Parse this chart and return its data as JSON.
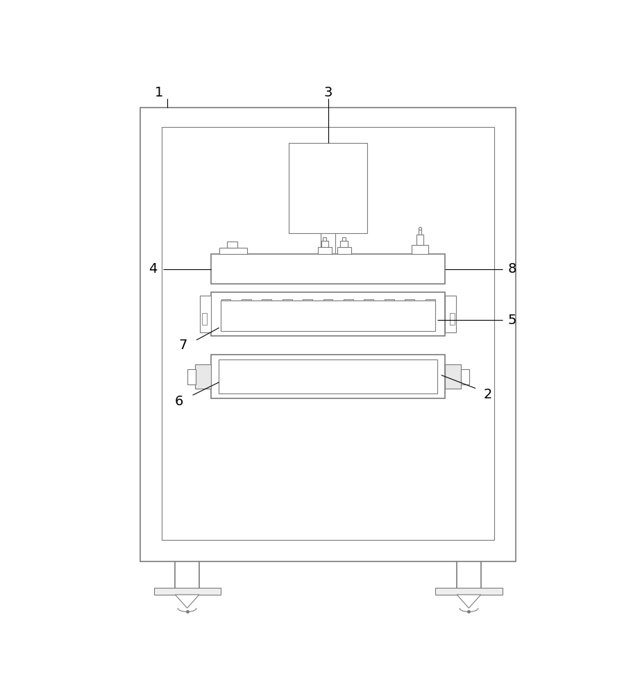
{
  "bg_color": "#ffffff",
  "line_color": "#7a7a7a",
  "lw_thin": 0.8,
  "lw_med": 1.2,
  "lw_thick": 1.5,
  "fig_width": 9.22,
  "fig_height": 10.0
}
